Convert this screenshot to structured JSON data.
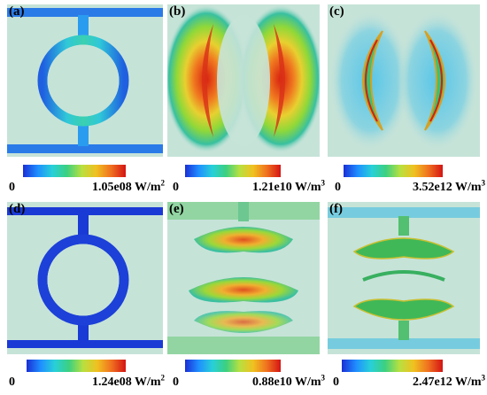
{
  "figure": {
    "panels": [
      {
        "label": "(a)"
      },
      {
        "label": "(b)"
      },
      {
        "label": "(c)"
      },
      {
        "label": "(d)"
      },
      {
        "label": "(e)"
      },
      {
        "label": "(f)"
      }
    ],
    "colorbars": [
      {
        "min": "0",
        "max": "1.05e08 W/m",
        "exp": "2"
      },
      {
        "min": "0",
        "max": "1.21e10 W/m",
        "exp": "3"
      },
      {
        "min": "0",
        "max": "3.52e12 W/m",
        "exp": "3"
      },
      {
        "min": "0",
        "max": "1.24e08 W/m",
        "exp": "2"
      },
      {
        "min": "0",
        "max": "0.88e10 W/m",
        "exp": "3"
      },
      {
        "min": "0",
        "max": "2.47e12 W/m",
        "exp": "3"
      }
    ],
    "colors": {
      "background": "#c6e3d8",
      "jet": [
        "#1a2fd6",
        "#1f8fff",
        "#28d0d8",
        "#3cd080",
        "#b8e040",
        "#f0c020",
        "#f07020",
        "#d41414"
      ]
    }
  }
}
